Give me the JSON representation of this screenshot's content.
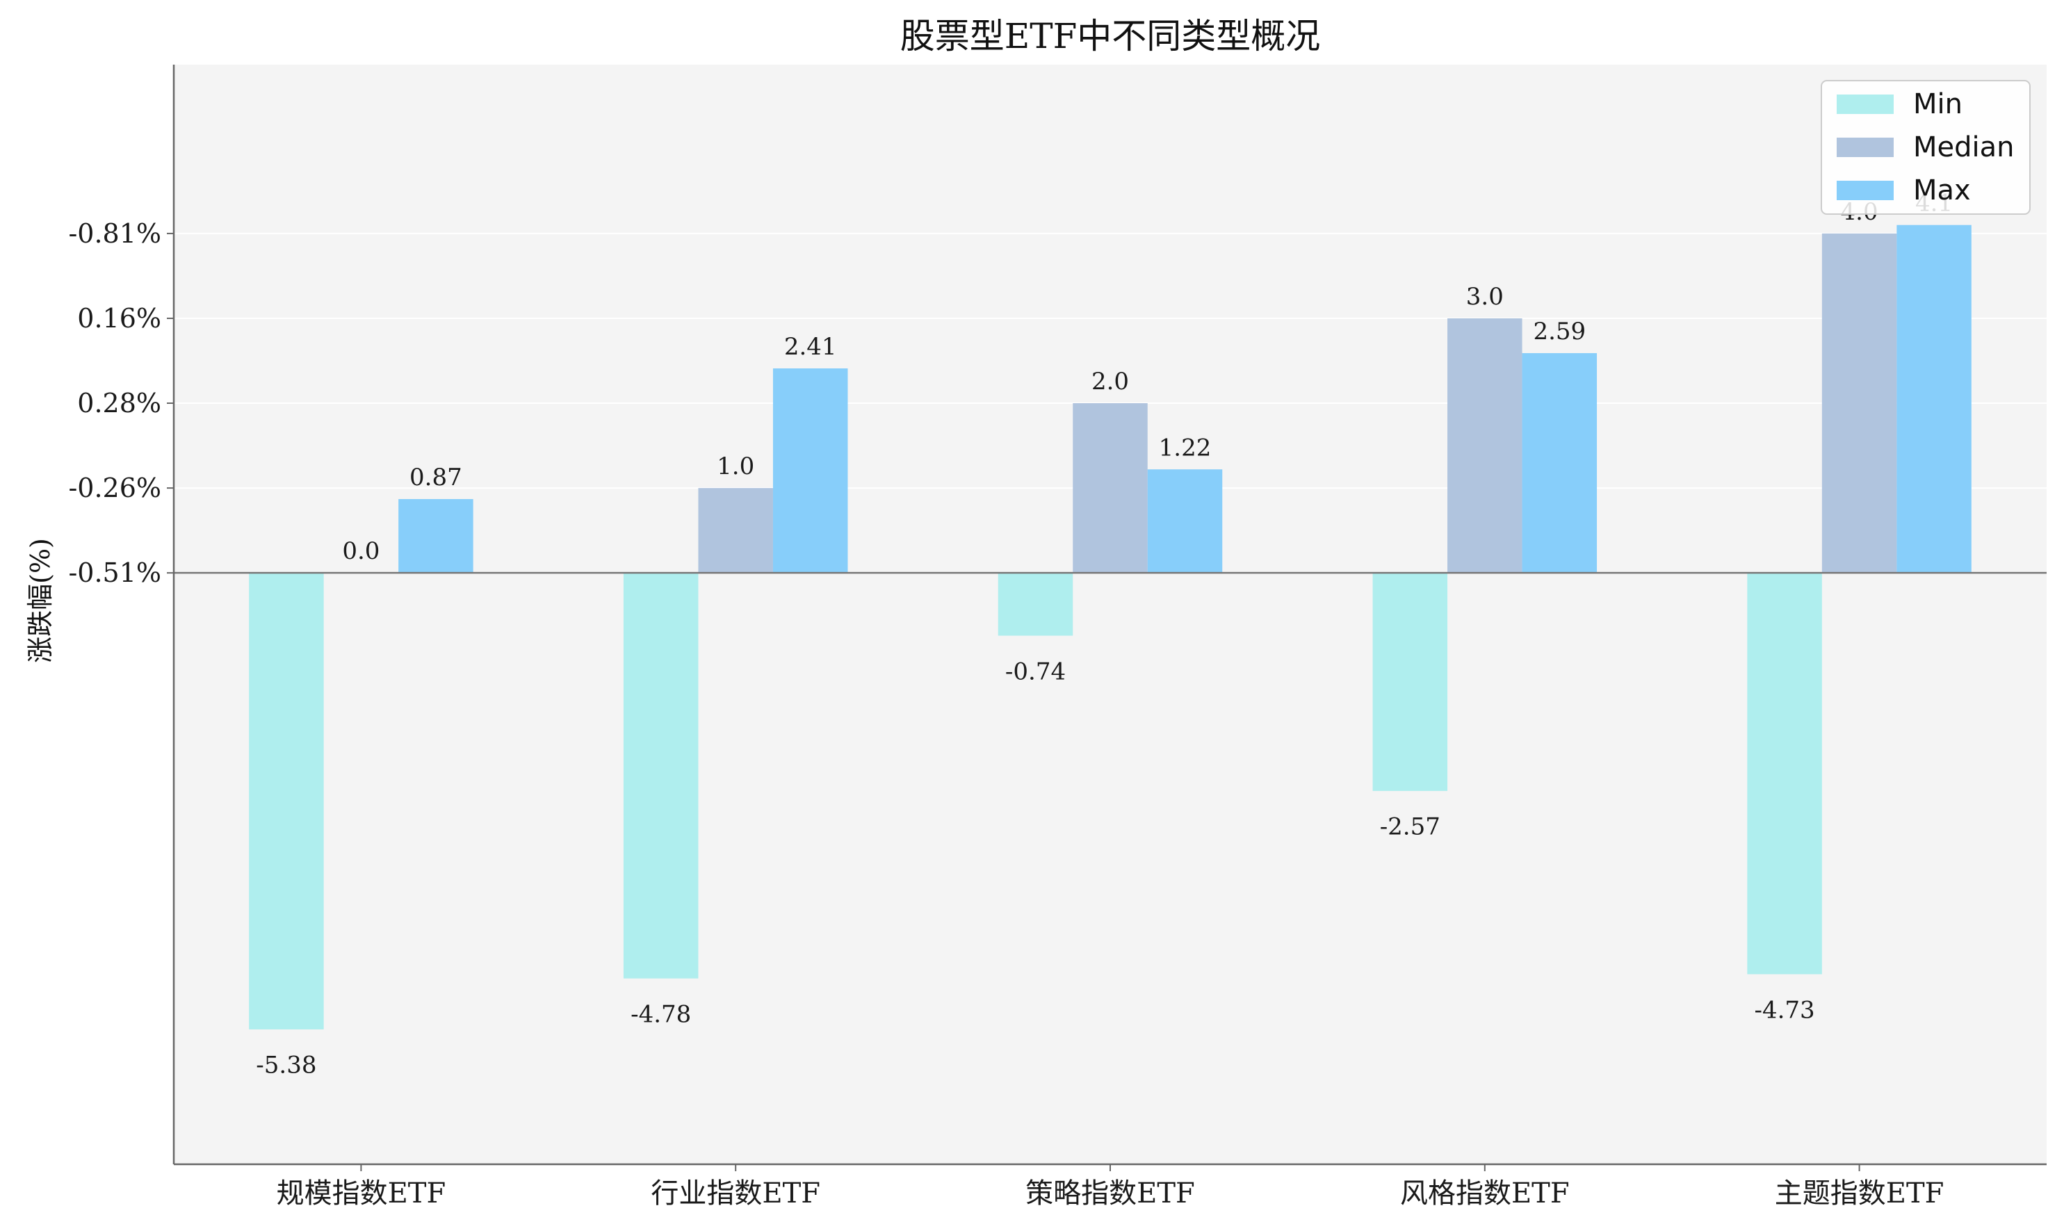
{
  "chart_data": {
    "type": "bar",
    "title": "股票型ETF中不同类型概况",
    "xlabel": "",
    "ylabel": "涨跌幅(%)",
    "categories": [
      "规模指数ETF",
      "行业指数ETF",
      "策略指数ETF",
      "风格指数ETF",
      "主题指数ETF"
    ],
    "series": [
      {
        "name": "Min",
        "color": "#afeeee",
        "values": [
          -5.38,
          -4.78,
          -0.74,
          -2.57,
          -4.73
        ],
        "labels": [
          "-5.38",
          "-4.78",
          "-0.74",
          "-2.57",
          "-4.73"
        ]
      },
      {
        "name": "Median",
        "color": "#b0c4de",
        "values": [
          0.0,
          1.0,
          2.0,
          3.0,
          4.0
        ],
        "labels": [
          "0.0",
          "1.0",
          "2.0",
          "3.0",
          "4.0"
        ]
      },
      {
        "name": "Max",
        "color": "#87cefa",
        "values": [
          0.87,
          2.41,
          1.22,
          2.59,
          4.1
        ],
        "labels": [
          "0.87",
          "2.41",
          "1.22",
          "2.59",
          "4.1"
        ]
      }
    ],
    "yticks": [
      0,
      1,
      2,
      3,
      4
    ],
    "ytick_labels": [
      "-0.51%",
      "-0.26%",
      "0.28%",
      "0.16%",
      "-0.81%"
    ],
    "ylim": [
      -6.97,
      5.99
    ],
    "grid": "horizontal",
    "legend_position": "top-right",
    "background_color": "#f4f4f4"
  }
}
